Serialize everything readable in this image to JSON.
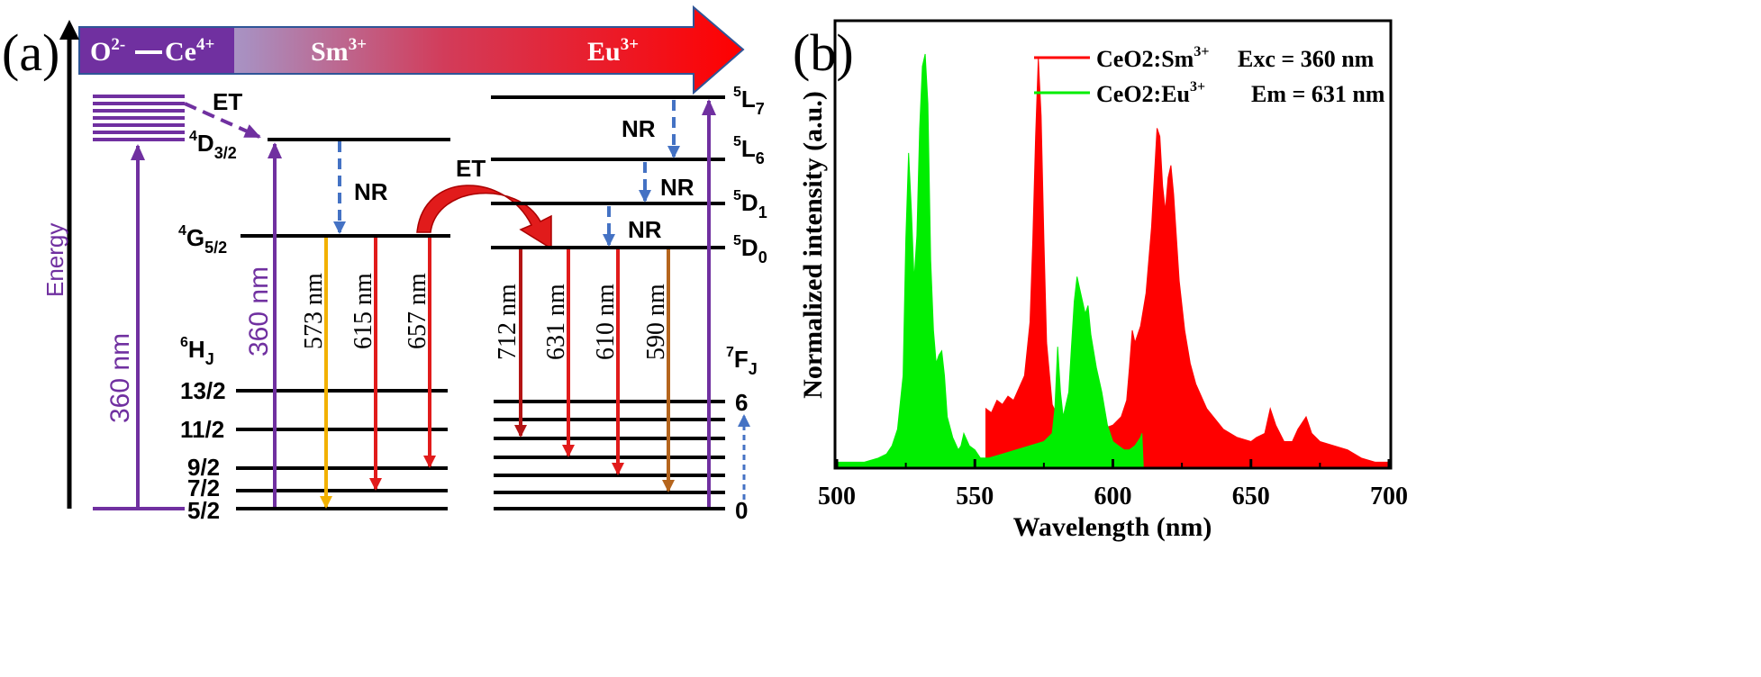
{
  "panel_a": {
    "label": "(a)",
    "banner": {
      "ion1": "O",
      "ion1_sup": "2-",
      "ion2": "Ce",
      "ion2_sup": "4+",
      "sm": "Sm",
      "sm_sup": "3+",
      "eu": "Eu",
      "eu_sup": "3+"
    },
    "energy_label": "Energy",
    "et_label_1": "ET",
    "et_label_2": "ET",
    "nr_labels": [
      "NR",
      "NR",
      "NR",
      "NR"
    ],
    "excitation": [
      "360 nm",
      "360 nm"
    ],
    "sm_levels": {
      "d32": {
        "sup": "4",
        "main": "D",
        "sub": "3/2"
      },
      "g52": {
        "sup": "4",
        "main": "G",
        "sub": "5/2"
      },
      "hj": {
        "sup": "6",
        "main": "H",
        "sub": "J"
      }
    },
    "sm_j_labels": [
      "13/2",
      "11/2",
      "9/2",
      "7/2",
      "5/2"
    ],
    "sm_emissions": [
      {
        "label": "573 nm",
        "color": "#f2b100"
      },
      {
        "label": "615 nm",
        "color": "#e11b1b"
      },
      {
        "label": "657 nm",
        "color": "#e11b1b"
      }
    ],
    "eu_levels": {
      "l7": {
        "sup": "5",
        "main": "L",
        "sub": "7"
      },
      "l6": {
        "sup": "5",
        "main": "L",
        "sub": "6"
      },
      "d1": {
        "sup": "5",
        "main": "D",
        "sub": "1"
      },
      "d0": {
        "sup": "5",
        "main": "D",
        "sub": "0"
      },
      "fj": {
        "sup": "7",
        "main": "F",
        "sub": "J"
      }
    },
    "eu_j_labels": [
      "6",
      "0"
    ],
    "eu_emissions": [
      {
        "label": "712 nm",
        "color": "#b41414"
      },
      {
        "label": "631 nm",
        "color": "#e11b1b"
      },
      {
        "label": "610 nm",
        "color": "#e11b1b"
      },
      {
        "label": "590 nm",
        "color": "#b5651d"
      }
    ],
    "colors": {
      "purple": "#7030a0",
      "blue_dash": "#4472c4",
      "red": "#e11b1b"
    }
  },
  "panel_b": {
    "label": "(b)",
    "chart_data": {
      "type": "area",
      "xlabel": "Wavelength (nm)",
      "ylabel": "Normalized intensity (a.u.)",
      "xlim": [
        500,
        700
      ],
      "xticks": [
        500,
        550,
        600,
        650,
        700
      ],
      "ylim": [
        0,
        1.0
      ],
      "legend_position": "top-right",
      "series": [
        {
          "name": "CeO2:Sm",
          "name_sup": "3+",
          "annotation": "Exc = 360 nm",
          "color": "#ff0000",
          "x": [
            554,
            556,
            558,
            560,
            562,
            564,
            566,
            568,
            570,
            571,
            572,
            573,
            574,
            575,
            576,
            578,
            580,
            584,
            588,
            592,
            596,
            600,
            603,
            605,
            606,
            607,
            608,
            610,
            612,
            614,
            616,
            617,
            618,
            619,
            620,
            621,
            622,
            624,
            626,
            628,
            630,
            634,
            640,
            645,
            650,
            652,
            655,
            657,
            659,
            662,
            665,
            667,
            670,
            672,
            675,
            680,
            685,
            690,
            695,
            700
          ],
          "y": [
            0.14,
            0.13,
            0.16,
            0.15,
            0.17,
            0.16,
            0.19,
            0.22,
            0.35,
            0.55,
            0.8,
            0.99,
            0.85,
            0.55,
            0.3,
            0.15,
            0.12,
            0.1,
            0.09,
            0.09,
            0.09,
            0.1,
            0.12,
            0.16,
            0.24,
            0.33,
            0.3,
            0.34,
            0.42,
            0.58,
            0.82,
            0.8,
            0.68,
            0.62,
            0.7,
            0.73,
            0.66,
            0.45,
            0.33,
            0.25,
            0.2,
            0.14,
            0.09,
            0.07,
            0.06,
            0.07,
            0.08,
            0.14,
            0.1,
            0.06,
            0.06,
            0.09,
            0.12,
            0.08,
            0.06,
            0.05,
            0.04,
            0.02,
            0.01,
            0.01
          ]
        },
        {
          "name": "CeO2:Eu",
          "name_sup": "3+",
          "annotation": "Em = 631 nm",
          "color": "#00ee00",
          "x": [
            500,
            510,
            515,
            518,
            520,
            522,
            524,
            525,
            526,
            527,
            528,
            529,
            530,
            531,
            532,
            533,
            534,
            535,
            536,
            537,
            538,
            539,
            540,
            542,
            544,
            545,
            546,
            548,
            550,
            552,
            555,
            560,
            565,
            570,
            575,
            578,
            579,
            580,
            581,
            582,
            584,
            585,
            586,
            587,
            588,
            589,
            590,
            591,
            592,
            594,
            596,
            598,
            600,
            602,
            604,
            606,
            608,
            609,
            610,
            610.5,
            611
          ],
          "y": [
            0.01,
            0.01,
            0.02,
            0.03,
            0.05,
            0.09,
            0.22,
            0.55,
            0.76,
            0.62,
            0.45,
            0.56,
            0.82,
            0.97,
            1.0,
            0.88,
            0.5,
            0.33,
            0.25,
            0.27,
            0.28,
            0.22,
            0.12,
            0.07,
            0.04,
            0.05,
            0.08,
            0.05,
            0.04,
            0.02,
            0.02,
            0.03,
            0.04,
            0.05,
            0.06,
            0.08,
            0.14,
            0.29,
            0.18,
            0.12,
            0.18,
            0.29,
            0.4,
            0.46,
            0.43,
            0.4,
            0.37,
            0.39,
            0.32,
            0.24,
            0.18,
            0.1,
            0.06,
            0.05,
            0.04,
            0.04,
            0.05,
            0.06,
            0.07,
            0.08,
            0.0
          ]
        }
      ]
    }
  }
}
